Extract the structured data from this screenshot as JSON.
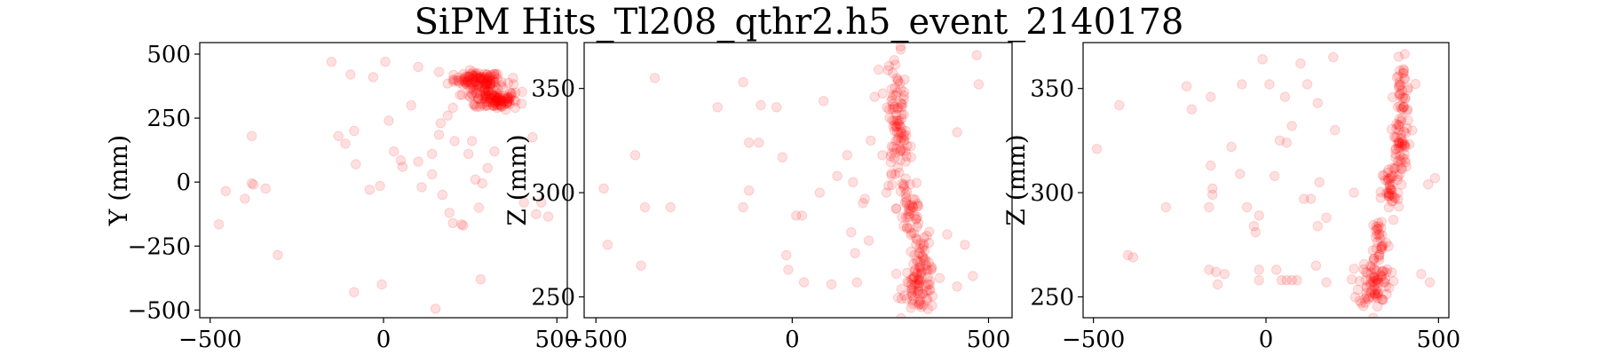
{
  "figure": {
    "title": "SiPM Hits_Tl208_qthr2.h5_event_2140178"
  },
  "chart_data": [
    {
      "type": "scatter",
      "title": "",
      "xlabel": "",
      "ylabel": "Y (mm)",
      "xlim": [
        -530,
        530
      ],
      "ylim": [
        -530,
        545
      ],
      "xticks": [
        -500,
        0,
        500
      ],
      "yticks": [
        -500,
        -250,
        0,
        250,
        500
      ],
      "xtick_labels": [
        "−500",
        "0",
        "500"
      ],
      "ytick_labels": [
        "−500",
        "−250",
        "0",
        "250",
        "500"
      ],
      "grid": false,
      "marker_color": "#ff0000",
      "marker_alpha": 0.12,
      "points": [
        [
          -150,
          470
        ],
        [
          -95,
          420
        ],
        [
          -30,
          410
        ],
        [
          5,
          470
        ],
        [
          100,
          450
        ],
        [
          160,
          430
        ],
        [
          185,
          385
        ],
        [
          200,
          400
        ],
        [
          -130,
          180
        ],
        [
          -110,
          150
        ],
        [
          -380,
          180
        ],
        [
          -475,
          -165
        ],
        [
          -455,
          -35
        ],
        [
          -400,
          -65
        ],
        [
          -375,
          -10
        ],
        [
          -380,
          -5
        ],
        [
          -340,
          -25
        ],
        [
          -305,
          -285
        ],
        [
          -85,
          200
        ],
        [
          -80,
          70
        ],
        [
          -40,
          -30
        ],
        [
          -10,
          -15
        ],
        [
          15,
          240
        ],
        [
          30,
          120
        ],
        [
          50,
          85
        ],
        [
          55,
          60
        ],
        [
          80,
          300
        ],
        [
          100,
          80
        ],
        [
          110,
          -20
        ],
        [
          140,
          30
        ],
        [
          140,
          110
        ],
        [
          160,
          185
        ],
        [
          170,
          -50
        ],
        [
          165,
          230
        ],
        [
          200,
          290
        ],
        [
          205,
          160
        ],
        [
          185,
          260
        ],
        [
          190,
          -120
        ],
        [
          200,
          -160
        ],
        [
          225,
          -165
        ],
        [
          230,
          -170
        ],
        [
          245,
          110
        ],
        [
          255,
          160
        ],
        [
          265,
          10
        ],
        [
          275,
          -100
        ],
        [
          285,
          -5
        ],
        [
          300,
          55
        ],
        [
          280,
          -380
        ],
        [
          150,
          -495
        ],
        [
          -5,
          -400
        ],
        [
          -85,
          -430
        ],
        [
          430,
          175
        ],
        [
          440,
          -125
        ],
        [
          455,
          -80
        ],
        [
          475,
          -135
        ],
        [
          405,
          -80
        ],
        [
          380,
          290
        ],
        [
          320,
          120
        ]
      ],
      "clusters": [
        {
          "cx": 270,
          "cy": 400,
          "rx": 55,
          "ry": 25,
          "n": 90
        },
        {
          "cx": 325,
          "cy": 320,
          "rx": 50,
          "ry": 30,
          "n": 90
        },
        {
          "cx": 300,
          "cy": 360,
          "rx": 60,
          "ry": 45,
          "n": 60
        }
      ]
    },
    {
      "type": "scatter",
      "title": "",
      "xlabel": "",
      "ylabel": "Z (mm)",
      "xlim": [
        -530,
        560
      ],
      "ylim": [
        240,
        372
      ],
      "xticks": [
        -500,
        0,
        500
      ],
      "yticks": [
        250,
        300,
        350
      ],
      "xtick_labels": [
        "−500",
        "0",
        "500"
      ],
      "ytick_labels": [
        "250",
        "300",
        "350"
      ],
      "grid": false,
      "marker_color": "#ff0000",
      "marker_alpha": 0.12,
      "points": [
        [
          -480,
          302
        ],
        [
          -470,
          275
        ],
        [
          -400,
          318
        ],
        [
          -375,
          293
        ],
        [
          -385,
          265
        ],
        [
          -350,
          355
        ],
        [
          -310,
          293
        ],
        [
          -190,
          341
        ],
        [
          -125,
          353
        ],
        [
          -110,
          324
        ],
        [
          -85,
          324
        ],
        [
          -80,
          342
        ],
        [
          -40,
          341
        ],
        [
          -25,
          317
        ],
        [
          -15,
          270
        ],
        [
          -10,
          263
        ],
        [
          -110,
          301
        ],
        [
          -125,
          293
        ],
        [
          10,
          289
        ],
        [
          25,
          289
        ],
        [
          30,
          257
        ],
        [
          70,
          300
        ],
        [
          80,
          344
        ],
        [
          100,
          256
        ],
        [
          115,
          308
        ],
        [
          140,
          318
        ],
        [
          150,
          281
        ],
        [
          155,
          305
        ],
        [
          160,
          271
        ],
        [
          165,
          257
        ],
        [
          180,
          295
        ],
        [
          185,
          297
        ],
        [
          195,
          277
        ],
        [
          200,
          325
        ],
        [
          210,
          346
        ],
        [
          220,
          359
        ],
        [
          230,
          318
        ],
        [
          240,
          300
        ],
        [
          420,
          329
        ],
        [
          460,
          260
        ],
        [
          475,
          352
        ],
        [
          470,
          366
        ],
        [
          440,
          275
        ],
        [
          420,
          255
        ],
        [
          395,
          280
        ]
      ],
      "clusters": [
        {
          "cx": 265,
          "cy": 345,
          "rx": 20,
          "ry": 18,
          "n": 50
        },
        {
          "cx": 275,
          "cy": 320,
          "rx": 25,
          "ry": 15,
          "n": 50
        },
        {
          "cx": 300,
          "cy": 293,
          "rx": 28,
          "ry": 15,
          "n": 40
        },
        {
          "cx": 325,
          "cy": 270,
          "rx": 25,
          "ry": 12,
          "n": 30
        },
        {
          "cx": 325,
          "cy": 255,
          "rx": 35,
          "ry": 10,
          "n": 80
        }
      ]
    },
    {
      "type": "scatter",
      "title": "",
      "xlabel": "",
      "ylabel": "Z (mm)",
      "xlim": [
        -530,
        530
      ],
      "ylim": [
        240,
        372
      ],
      "xticks": [
        -500,
        0,
        500
      ],
      "yticks": [
        250,
        300,
        350
      ],
      "xtick_labels": [
        "−500",
        "0",
        "500"
      ],
      "ytick_labels": [
        "250",
        "300",
        "350"
      ],
      "grid": false,
      "marker_color": "#ff0000",
      "marker_alpha": 0.12,
      "points": [
        [
          -490,
          321
        ],
        [
          -425,
          342
        ],
        [
          -400,
          270
        ],
        [
          -385,
          269
        ],
        [
          -290,
          293
        ],
        [
          -230,
          351
        ],
        [
          -215,
          340
        ],
        [
          -160,
          346
        ],
        [
          -160,
          313
        ],
        [
          -155,
          302
        ],
        [
          -155,
          299
        ],
        [
          -165,
          293
        ],
        [
          -165,
          263
        ],
        [
          -145,
          262
        ],
        [
          -140,
          256
        ],
        [
          -120,
          261
        ],
        [
          -100,
          322
        ],
        [
          -75,
          309
        ],
        [
          -70,
          352
        ],
        [
          -55,
          293
        ],
        [
          -35,
          284
        ],
        [
          -30,
          281
        ],
        [
          -20,
          289
        ],
        [
          -20,
          263
        ],
        [
          -20,
          258
        ],
        [
          -10,
          364
        ],
        [
          10,
          352
        ],
        [
          25,
          308
        ],
        [
          30,
          263
        ],
        [
          45,
          258
        ],
        [
          60,
          258
        ],
        [
          75,
          258
        ],
        [
          90,
          258
        ],
        [
          100,
          362
        ],
        [
          55,
          346
        ],
        [
          75,
          332
        ],
        [
          40,
          325
        ],
        [
          60,
          324
        ],
        [
          110,
          297
        ],
        [
          130,
          297
        ],
        [
          150,
          284
        ],
        [
          155,
          305
        ],
        [
          175,
          288
        ],
        [
          195,
          365
        ],
        [
          200,
          330
        ],
        [
          120,
          352
        ],
        [
          150,
          343
        ],
        [
          145,
          265
        ],
        [
          175,
          257
        ],
        [
          255,
          300
        ],
        [
          450,
          261
        ],
        [
          470,
          304
        ],
        [
          490,
          307
        ],
        [
          475,
          257
        ]
      ],
      "clusters": [
        {
          "cx": 395,
          "cy": 345,
          "rx": 20,
          "ry": 15,
          "n": 50
        },
        {
          "cx": 385,
          "cy": 320,
          "rx": 22,
          "ry": 12,
          "n": 45
        },
        {
          "cx": 360,
          "cy": 300,
          "rx": 22,
          "ry": 12,
          "n": 40
        },
        {
          "cx": 330,
          "cy": 278,
          "rx": 20,
          "ry": 10,
          "n": 30
        },
        {
          "cx": 315,
          "cy": 257,
          "rx": 38,
          "ry": 10,
          "n": 80
        }
      ]
    }
  ]
}
